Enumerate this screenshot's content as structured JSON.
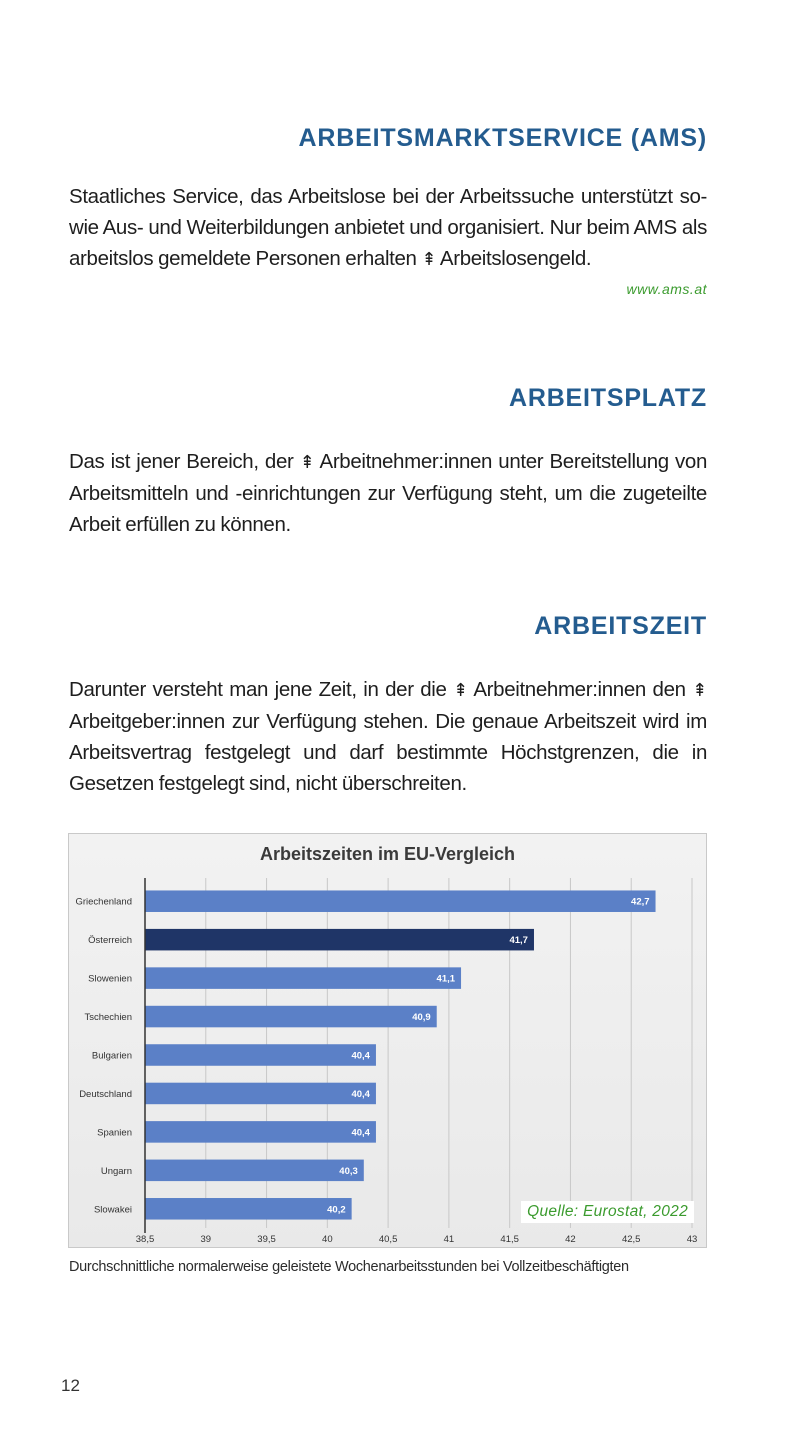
{
  "entries": [
    {
      "heading": "ARBEITSMARKTSERVICE (AMS)",
      "text": [
        {
          "t": "Staatliches Service, das Arbeitslose bei der Arbeitssuche unterstützt so-wie Aus- und Weiterbildungen anbietet und organisiert. Nur beim AMS als arbeitslos gemeldete Personen erhalten "
        },
        {
          "arrow": "⇞"
        },
        {
          "t": " Arbeitslosengeld."
        }
      ],
      "link": "www.ams.at"
    },
    {
      "heading": "ARBEITSPLATZ",
      "text": [
        {
          "t": "Das ist jener Bereich, der "
        },
        {
          "arrow": "⇞"
        },
        {
          "t": " Arbeitnehmer:innen unter Bereitstellung von Arbeitsmitteln und -einrichtungen zur Verfügung steht, um die zugeteilte Arbeit erfüllen zu können."
        }
      ]
    },
    {
      "heading": "ARBEITSZEIT",
      "text": [
        {
          "t": "Darunter versteht man jene Zeit, in der die "
        },
        {
          "arrow": "⇞"
        },
        {
          "t": " Arbeitnehmer:innen den "
        },
        {
          "arrow": "⇞"
        },
        {
          "t": " Arbeitgeber:innen zur Verfügung stehen. Die genaue Arbeitszeit wird im Arbeitsvertrag festgelegt und darf bestimmte Höchstgrenzen, die in Gesetzen festgelegt sind, nicht überschreiten."
        }
      ]
    }
  ],
  "chart_data": {
    "type": "bar",
    "orientation": "horizontal",
    "title": "Arbeitszeiten im EU-Vergleich",
    "categories": [
      "Griechenland",
      "Österreich",
      "Slowenien",
      "Tschechien",
      "Bulgarien",
      "Deutschland",
      "Spanien",
      "Ungarn",
      "Slowakei"
    ],
    "values": [
      42.7,
      41.7,
      41.1,
      40.9,
      40.4,
      40.4,
      40.4,
      40.3,
      40.2
    ],
    "value_labels": [
      "42,7",
      "41,7",
      "41,1",
      "40,9",
      "40,4",
      "40,4",
      "40,4",
      "40,3",
      "40,2"
    ],
    "highlight": "Österreich",
    "xlim": [
      38.5,
      43
    ],
    "xticks": [
      38.5,
      39,
      39.5,
      40,
      40.5,
      41,
      41.5,
      42,
      42.5,
      43
    ],
    "xtick_labels": [
      "38,5",
      "39",
      "39,5",
      "40",
      "40,5",
      "41",
      "41,5",
      "42",
      "42,5",
      "43"
    ],
    "grid": true,
    "source": "Quelle: Eurostat, 2022",
    "colors": {
      "bar": "#5b80c7",
      "highlight": "#1f3567",
      "grid": "#c8c8c8",
      "axis": "#333333"
    }
  },
  "caption": "Durchschnittliche normalerweise geleistete Wochenarbeitsstunden bei Vollzeitbeschäftigten",
  "page_number": "12"
}
